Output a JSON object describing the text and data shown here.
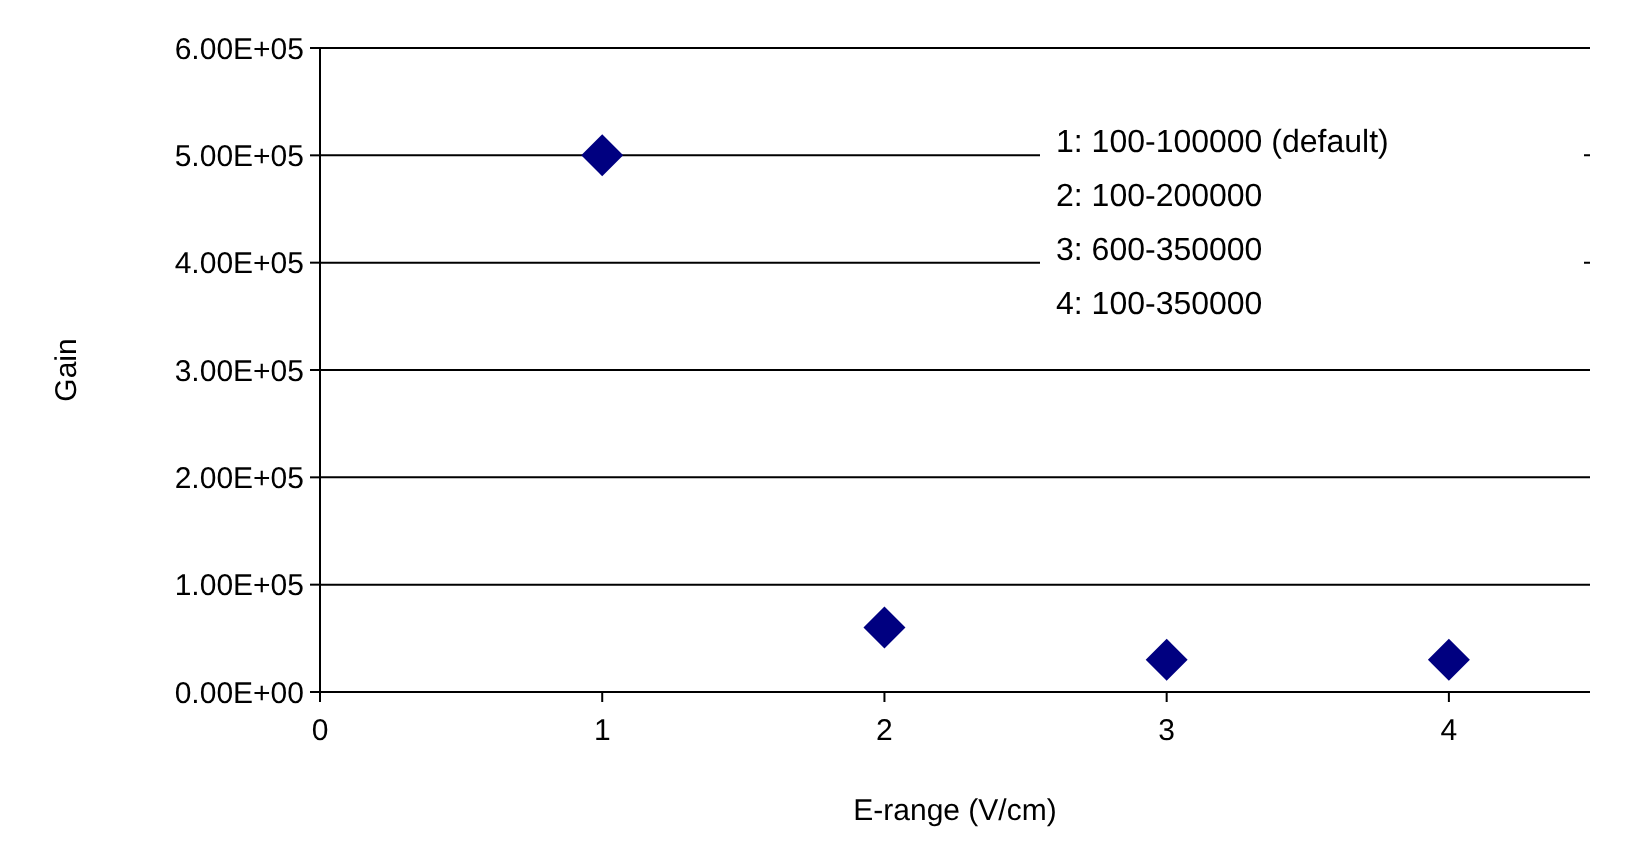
{
  "chart_data": {
    "type": "scatter",
    "xlabel": "E-range (V/cm)",
    "ylabel": "Gain",
    "x": [
      1,
      2,
      3,
      4
    ],
    "series": [
      {
        "color": "#000080",
        "values": [
          500000,
          60000,
          30000,
          30000
        ]
      }
    ],
    "marker": "diamond",
    "xlim": [
      0,
      4.5
    ],
    "xticks": [
      0,
      1,
      2,
      3,
      4
    ],
    "ylim": [
      0,
      600000
    ],
    "yticks": [
      {
        "value": 0,
        "label": "0.00E+00"
      },
      {
        "value": 100000,
        "label": "1.00E+05"
      },
      {
        "value": 200000,
        "label": "2.00E+05"
      },
      {
        "value": 300000,
        "label": "3.00E+05"
      },
      {
        "value": 400000,
        "label": "4.00E+05"
      },
      {
        "value": 500000,
        "label": "5.00E+05"
      },
      {
        "value": 600000,
        "label": "6.00E+05"
      }
    ],
    "grid": "y",
    "annotations": [
      "1: 100-100000 (default)",
      "2: 100-200000",
      "3: 600-350000",
      "4: 100-350000"
    ]
  }
}
